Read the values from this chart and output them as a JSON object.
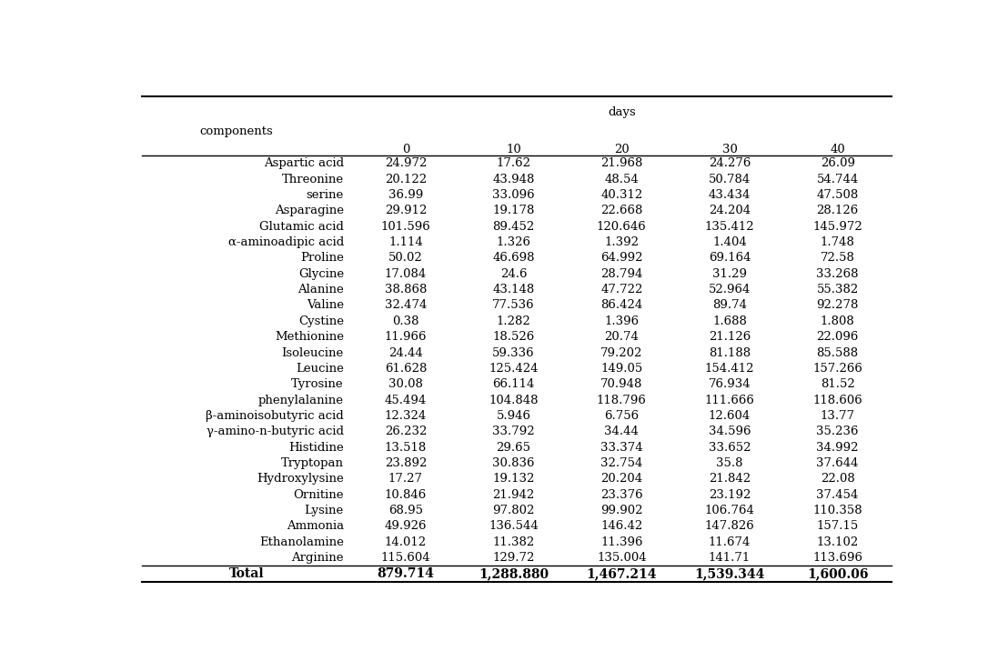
{
  "header_top": "days",
  "header_cols": [
    "components",
    "0",
    "10",
    "20",
    "30",
    "40"
  ],
  "rows": [
    [
      "Aspartic acid",
      "24.972",
      "17.62",
      "21.968",
      "24.276",
      "26.09"
    ],
    [
      "Threonine",
      "20.122",
      "43.948",
      "48.54",
      "50.784",
      "54.744"
    ],
    [
      "serine",
      "36.99",
      "33.096",
      "40.312",
      "43.434",
      "47.508"
    ],
    [
      "Asparagine",
      "29.912",
      "19.178",
      "22.668",
      "24.204",
      "28.126"
    ],
    [
      "Glutamic acid",
      "101.596",
      "89.452",
      "120.646",
      "135.412",
      "145.972"
    ],
    [
      "α-aminoadipic acid",
      "1.114",
      "1.326",
      "1.392",
      "1.404",
      "1.748"
    ],
    [
      "Proline",
      "50.02",
      "46.698",
      "64.992",
      "69.164",
      "72.58"
    ],
    [
      "Glycine",
      "17.084",
      "24.6",
      "28.794",
      "31.29",
      "33.268"
    ],
    [
      "Alanine",
      "38.868",
      "43.148",
      "47.722",
      "52.964",
      "55.382"
    ],
    [
      "Valine",
      "32.474",
      "77.536",
      "86.424",
      "89.74",
      "92.278"
    ],
    [
      "Cystine",
      "0.38",
      "1.282",
      "1.396",
      "1.688",
      "1.808"
    ],
    [
      "Methionine",
      "11.966",
      "18.526",
      "20.74",
      "21.126",
      "22.096"
    ],
    [
      "Isoleucine",
      "24.44",
      "59.336",
      "79.202",
      "81.188",
      "85.588"
    ],
    [
      "Leucine",
      "61.628",
      "125.424",
      "149.05",
      "154.412",
      "157.266"
    ],
    [
      "Tyrosine",
      "30.08",
      "66.114",
      "70.948",
      "76.934",
      "81.52"
    ],
    [
      "phenylalanine",
      "45.494",
      "104.848",
      "118.796",
      "111.666",
      "118.606"
    ],
    [
      "β-aminoisobutyric acid",
      "12.324",
      "5.946",
      "6.756",
      "12.604",
      "13.77"
    ],
    [
      "γ-amino-n-butyric acid",
      "26.232",
      "33.792",
      "34.44",
      "34.596",
      "35.236"
    ],
    [
      "Histidine",
      "13.518",
      "29.65",
      "33.374",
      "33.652",
      "34.992"
    ],
    [
      "Tryptopan",
      "23.892",
      "30.836",
      "32.754",
      "35.8",
      "37.644"
    ],
    [
      "Hydroxylysine",
      "17.27",
      "19.132",
      "20.204",
      "21.842",
      "22.08"
    ],
    [
      "Ornitine",
      "10.846",
      "21.942",
      "23.376",
      "23.192",
      "37.454"
    ],
    [
      "Lysine",
      "68.95",
      "97.802",
      "99.902",
      "106.764",
      "110.358"
    ],
    [
      "Ammonia",
      "49.926",
      "136.544",
      "146.42",
      "147.826",
      "157.15"
    ],
    [
      "Ethanolamine",
      "14.012",
      "11.382",
      "11.396",
      "11.674",
      "13.102"
    ],
    [
      "Arginine",
      "115.604",
      "129.72",
      "135.004",
      "141.71",
      "113.696"
    ]
  ],
  "total_row": [
    "Total",
    "879.714",
    "1,288.880",
    "1,467.214",
    "1,539.344",
    "1,600.06"
  ],
  "bg_color": "#ffffff",
  "text_color": "#000000",
  "font_size": 9.5,
  "header_font_size": 9.5,
  "total_font_size": 10
}
